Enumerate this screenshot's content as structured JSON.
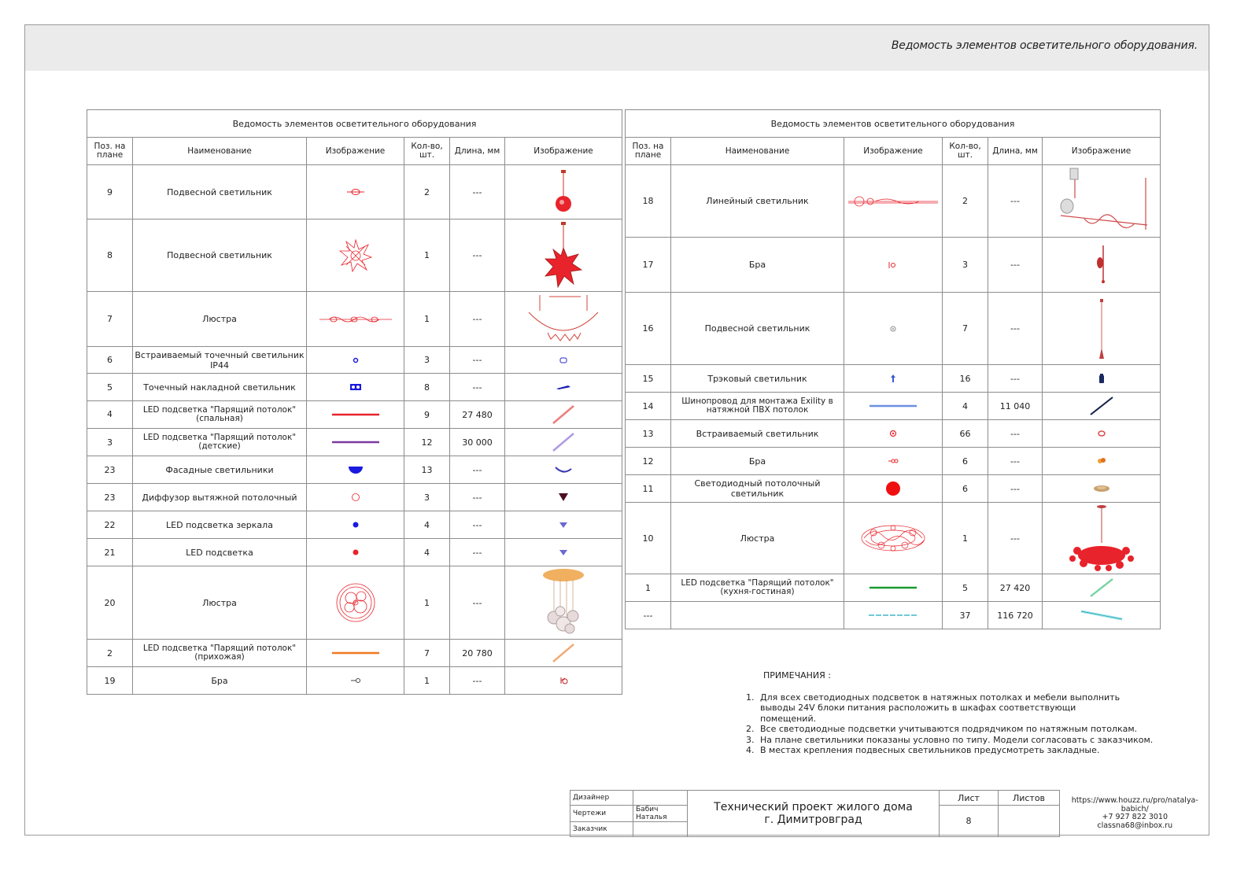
{
  "sheet_title": "Ведомость элементов осветительного оборудования.",
  "colors": {
    "accent_red": "#e8232b",
    "pink": "#e07a9a",
    "header_band": "#ebebeb"
  },
  "columns": {
    "pos": "Поз. на плане",
    "name": "Наименование",
    "image": "Изображение",
    "qty": "Кол-во, шт.",
    "length": "Длина, мм",
    "photo": "Изображение"
  },
  "table_left": {
    "caption": "Ведомость элементов осветительного оборудования",
    "rows": [
      {
        "pos": "9",
        "name": "Подвесной светильник",
        "qty": "2",
        "length": "---",
        "plan_icon": "pendant-plan-icon",
        "photo": "red-pendant-icon"
      },
      {
        "pos": "8",
        "name": "Подвесной светильник",
        "qty": "1",
        "length": "---",
        "plan_icon": "star-chandelier-plan-icon",
        "photo": "red-star-pendant-icon"
      },
      {
        "pos": "7",
        "name": "Люстра",
        "qty": "1",
        "length": "---",
        "plan_icon": "linear-chandelier-plan-icon",
        "photo": "arc-chandelier-icon"
      },
      {
        "pos": "6",
        "name": "Встраиваемый точечный светильник IP44",
        "qty": "3",
        "length": "---",
        "plan_icon": "small-blue-dot-icon",
        "photo": "spot-ip44-icon"
      },
      {
        "pos": "5",
        "name": "Точечный накладной светильник",
        "qty": "8",
        "length": "---",
        "plan_icon": "double-spot-icon",
        "photo": "surface-spot-icon"
      },
      {
        "pos": "4",
        "name": "LED подсветка \"Парящий потолок\" (спальная)",
        "qty": "9",
        "length": "27 480",
        "plan_icon": "red-line-icon",
        "photo": "red-strip-icon"
      },
      {
        "pos": "3",
        "name": "LED подсветка \"Парящий потолок\" (детские)",
        "qty": "12",
        "length": "30 000",
        "plan_icon": "purple-line-icon",
        "photo": "purple-strip-icon"
      },
      {
        "pos": "23",
        "name": "Фасадные светильники",
        "qty": "13",
        "length": "---",
        "plan_icon": "half-circle-icon",
        "photo": "facade-light-icon"
      },
      {
        "pos": "23",
        "name": "Диффузор вытяжной потолочный",
        "qty": "3",
        "length": "---",
        "plan_icon": "hollow-circle-icon",
        "photo": "diffuser-icon"
      },
      {
        "pos": "22",
        "name": "LED подсветка зеркала",
        "qty": "4",
        "length": "---",
        "plan_icon": "blue-dot-icon",
        "photo": "mirror-led-icon"
      },
      {
        "pos": "21",
        "name": "LED подсветка",
        "qty": "4",
        "length": "---",
        "plan_icon": "red-dot-icon",
        "photo": "led-icon"
      },
      {
        "pos": "20",
        "name": "Люстра",
        "qty": "1",
        "length": "---",
        "plan_icon": "rings-chandelier-plan-icon",
        "photo": "bubble-chandelier-icon"
      },
      {
        "pos": "2",
        "name": "LED подсветка \"Парящий потолок\" (прихожая)",
        "qty": "7",
        "length": "20 780",
        "plan_icon": "orange-line-icon",
        "photo": "orange-strip-icon"
      },
      {
        "pos": "19",
        "name": "Бра",
        "qty": "1",
        "length": "---",
        "plan_icon": "sconce-plan-icon",
        "photo": "sconce-photo-icon"
      }
    ]
  },
  "table_right": {
    "caption": "Ведомость элементов осветительного оборудования",
    "rows": [
      {
        "pos": "18",
        "name": "Линейный светильник",
        "qty": "2",
        "length": "---",
        "plan_icon": "linear-lamp-plan-icon",
        "photo": "linear-lamp-photo-icon"
      },
      {
        "pos": "17",
        "name": "Бра",
        "qty": "3",
        "length": "---",
        "plan_icon": "sconce-red-plan-icon",
        "photo": "wall-sconce-photo-icon"
      },
      {
        "pos": "16",
        "name": "Подвесной светильник",
        "qty": "7",
        "length": "---",
        "plan_icon": "small-ring-icon",
        "photo": "thin-pendant-icon"
      },
      {
        "pos": "15",
        "name": "Трэковый светильник",
        "qty": "16",
        "length": "---",
        "plan_icon": "track-plan-icon",
        "photo": "track-light-icon"
      },
      {
        "pos": "14",
        "name": "Шинопровод для монтажа Exility в натяжной ПВХ потолок",
        "qty": "4",
        "length": "11 040",
        "plan_icon": "blue-line-icon",
        "photo": "track-rail-icon"
      },
      {
        "pos": "13",
        "name": "Встраиваемый  светильник",
        "qty": "66",
        "length": "---",
        "plan_icon": "recessed-plan-icon",
        "photo": "recessed-photo-icon"
      },
      {
        "pos": "12",
        "name": "Бра",
        "qty": "6",
        "length": "---",
        "plan_icon": "sconce-double-plan-icon",
        "photo": "orange-sconce-icon"
      },
      {
        "pos": "11",
        "name": "Светодиодный потолочный светильник",
        "qty": "6",
        "length": "---",
        "plan_icon": "big-red-dot-icon",
        "photo": "ceiling-disc-icon"
      },
      {
        "pos": "10",
        "name": "Люстра",
        "qty": "1",
        "length": "---",
        "plan_icon": "coral-chandelier-plan-icon",
        "photo": "coral-chandelier-icon"
      },
      {
        "pos": "1",
        "name": "LED подсветка \"Парящий потолок\" (кухня-гостиная)",
        "qty": "5",
        "length": "27 420",
        "plan_icon": "green-line-icon",
        "photo": "green-strip-icon"
      },
      {
        "pos": "---",
        "name": "",
        "qty": "37",
        "length": "116 720",
        "plan_icon": "cyan-dashed-line-icon",
        "photo": "cyan-strip-icon"
      }
    ]
  },
  "notes": {
    "title": "ПРИМЕЧАНИЯ :",
    "items": [
      "Для всех светодиодных подсветок в натяжных потолках и мебели выполнить выводы 24V блоки питания  расположить в  шкафах соответствующи помещений.",
      "Все светодиодные подсветки учитываются подрядчиком по натяжным потолкам.",
      "На плане светильники показаны условно по типу. Модели согласовать с заказчиком.",
      "В местах крепления подвесных светильников предусмотреть закладные."
    ]
  },
  "stamp": {
    "designer_label": "Дизайнер",
    "drawings_label": "Чертежи",
    "drawings_value": "Бабич Наталья",
    "client_label": "Заказчик",
    "project_line1": "Технический проект жилого дома",
    "project_line2": "г. Димитровград",
    "sheet_label": "Лист",
    "sheet_value": "8",
    "sheets_label": "Листов",
    "url": "https://www.houzz.ru/pro/natalya-babich/",
    "phone": "+7 927 822 3010",
    "email": "classna68@inbox.ru"
  }
}
